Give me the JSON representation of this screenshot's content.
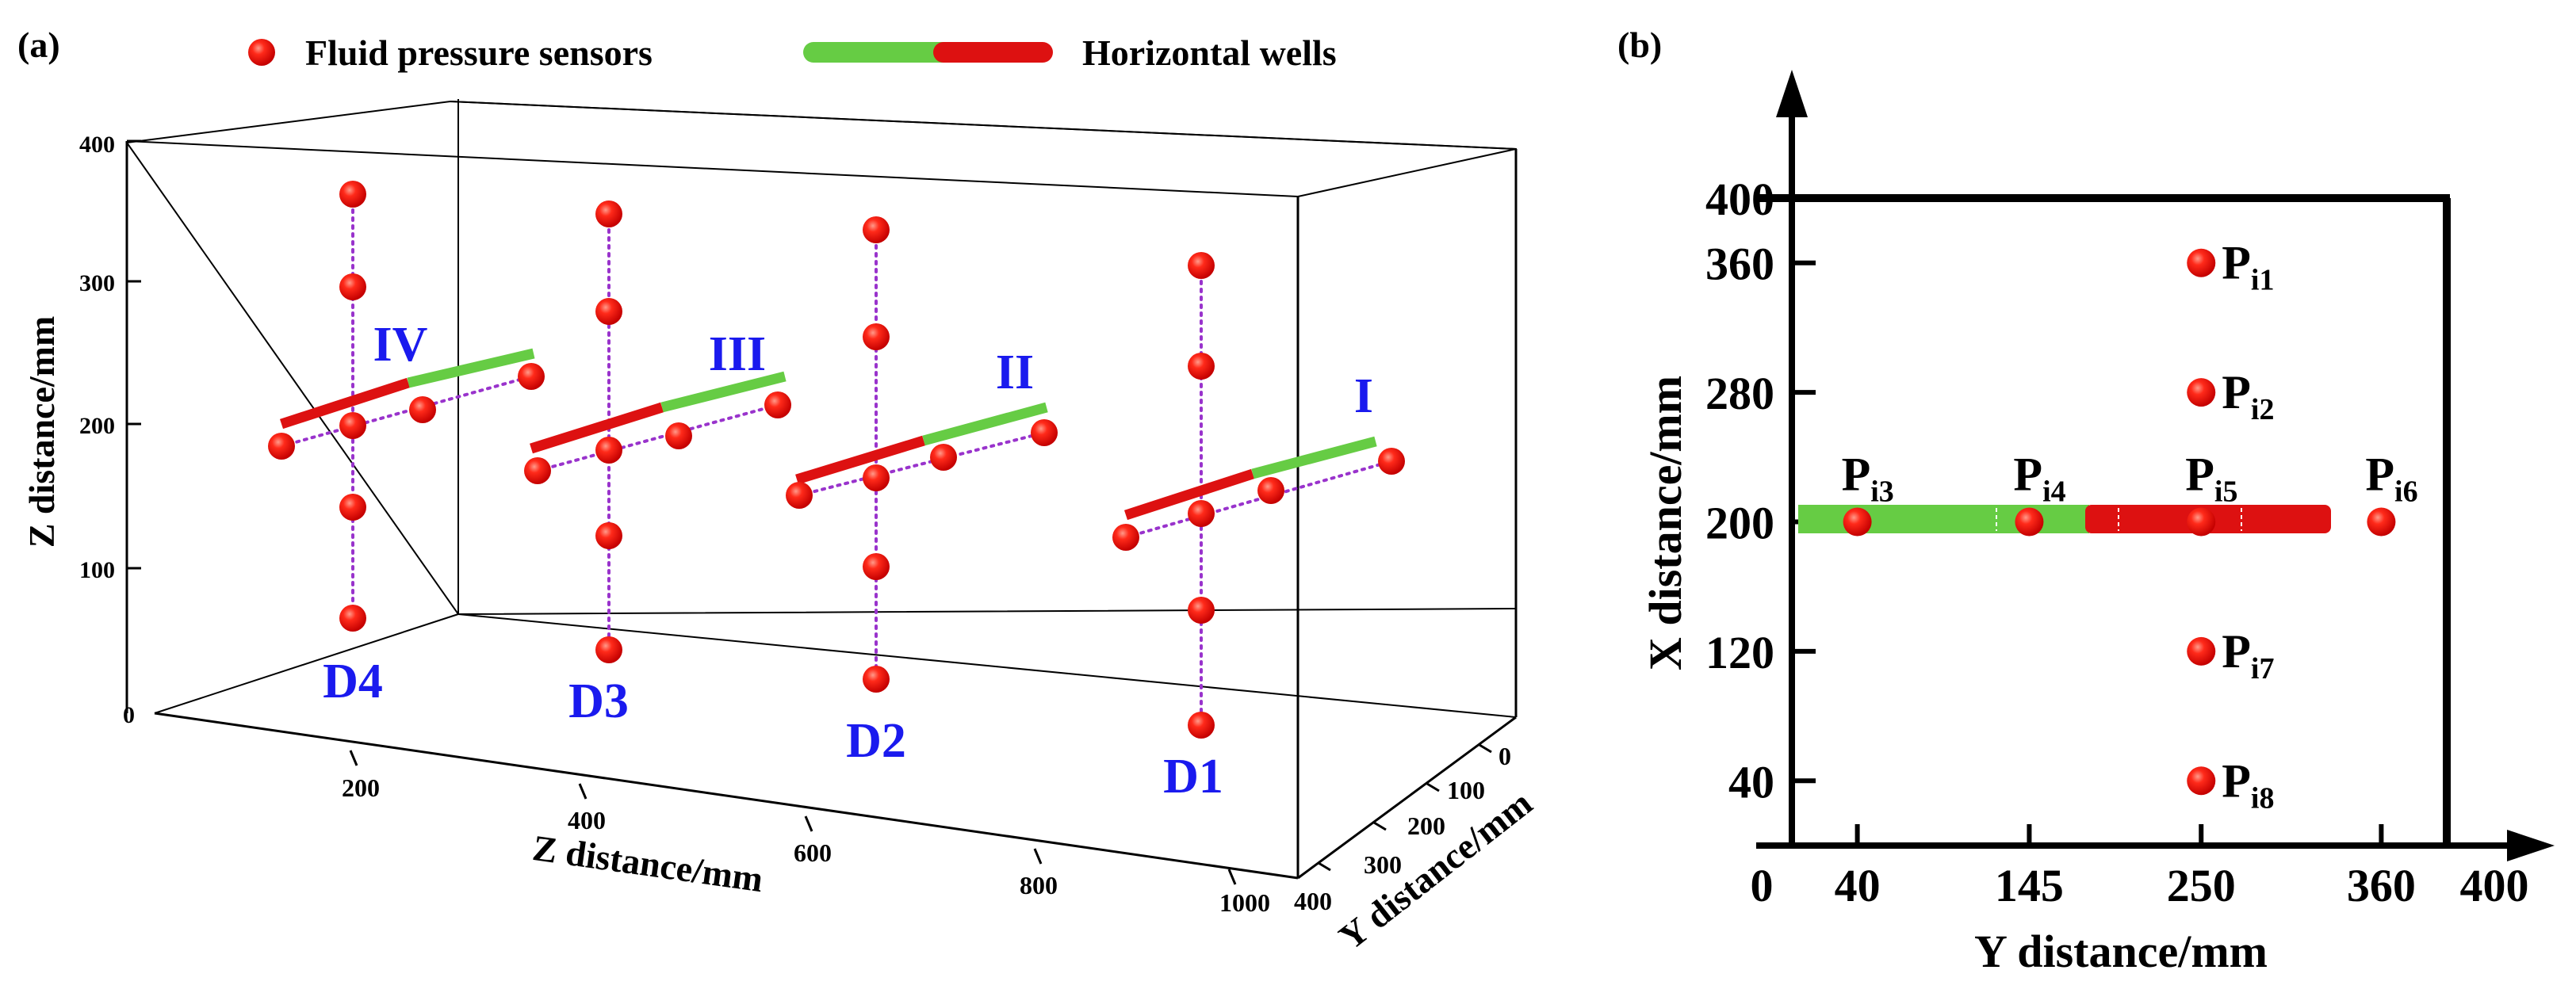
{
  "panel_a": {
    "label": "(a)",
    "legend": {
      "sensor_label": "Fluid pressure sensors",
      "well_label": "Horizontal wells"
    },
    "axes": {
      "z_vertical_label": "Z distance/mm",
      "z_vertical_ticks": [
        "0",
        "100",
        "200",
        "300",
        "400"
      ],
      "z_depth_label": "Z distance/mm",
      "z_depth_ticks": [
        "200",
        "400",
        "600",
        "800",
        "1000"
      ],
      "y_label": "Y distance/mm",
      "y_ticks": [
        "0",
        "100",
        "200",
        "300",
        "400"
      ]
    },
    "wells": [
      {
        "roman": "IV",
        "column": "D4"
      },
      {
        "roman": "III",
        "column": "D3"
      },
      {
        "roman": "II",
        "column": "D2"
      },
      {
        "roman": "I",
        "column": "D1"
      }
    ]
  },
  "panel_b": {
    "label": "(b)",
    "x_axis_label": "Y distance/mm",
    "y_axis_label": "X distance/mm",
    "x_ticks": [
      "0",
      "40",
      "145",
      "250",
      "360",
      "400"
    ],
    "y_ticks": [
      "40",
      "120",
      "200",
      "280",
      "360",
      "400"
    ],
    "sensors": [
      {
        "name": "P",
        "sub": "i1",
        "y": 250,
        "x": 360
      },
      {
        "name": "P",
        "sub": "i2",
        "y": 250,
        "x": 280
      },
      {
        "name": "P",
        "sub": "i3",
        "y": 40,
        "x": 200
      },
      {
        "name": "P",
        "sub": "i4",
        "y": 145,
        "x": 200
      },
      {
        "name": "P",
        "sub": "i5",
        "y": 250,
        "x": 200
      },
      {
        "name": "P",
        "sub": "i6",
        "y": 360,
        "x": 200
      },
      {
        "name": "P",
        "sub": "i7",
        "y": 250,
        "x": 120
      },
      {
        "name": "P",
        "sub": "i8",
        "y": 250,
        "x": 40
      }
    ]
  },
  "colors": {
    "sensor": "#ee1111",
    "well_green": "#66cc44",
    "well_red": "#dd1111",
    "roman_blue": "#1a1aee",
    "dotted": "#9933cc"
  }
}
